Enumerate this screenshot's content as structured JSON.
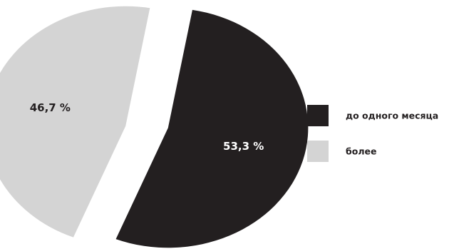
{
  "chart_data": {
    "type": "pie",
    "exploded": true,
    "legend_position": "right",
    "slices": [
      {
        "label": "до одного месяца",
        "value": 53.3,
        "value_label": "53,3 %",
        "color": "#231f20",
        "text_color": "#ffffff"
      },
      {
        "label": "более",
        "value": 46.7,
        "value_label": "46,7 %",
        "color": "#d4d4d4",
        "text_color": "#231f20"
      }
    ]
  }
}
